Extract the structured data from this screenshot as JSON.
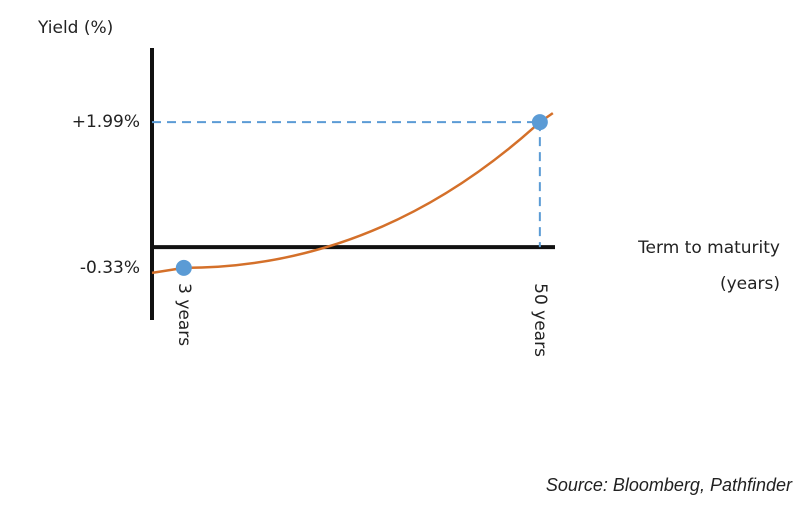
{
  "chart_data": {
    "type": "line",
    "ylabel": "Yield (%)",
    "xlabel": [
      "Term to maturity",
      "(years)"
    ],
    "source": "Source:  Bloomberg, Pathfinder",
    "x": [
      3,
      50
    ],
    "series": [
      {
        "color": "#d4702a",
        "point_color": "#5b9bd5",
        "values": [
          -0.33,
          1.99
        ]
      }
    ],
    "xlim": [
      -1.2,
      52
    ],
    "ylim": [
      -1.16,
      3.17
    ],
    "xticks": [
      {
        "value": 3,
        "label": "3 years"
      },
      {
        "value": 50,
        "label": "50 years"
      }
    ],
    "yticks": [
      {
        "value": 1.99,
        "label": "+1.99%"
      },
      {
        "value": -0.33,
        "label": "-0.33%"
      }
    ],
    "guide_color": "#5b9bd5"
  }
}
